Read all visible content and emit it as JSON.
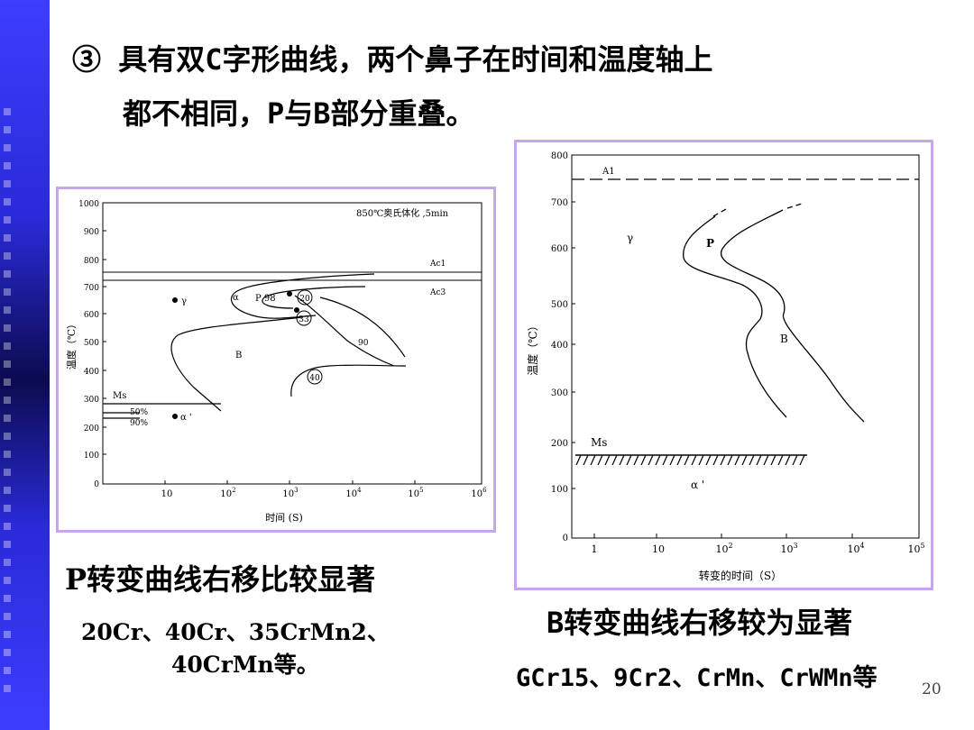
{
  "title": {
    "line1": "③ 具有双C字形曲线，两个鼻子在时间和温度轴上",
    "line2": "都不相同，P与B部分重叠。"
  },
  "left_figure": {
    "annotation": "850℃奥氏体化 ,5min",
    "ylabel": "温度（℃）",
    "xlabel": "时间 (S)",
    "yticks": [
      "1000",
      "900",
      "800",
      "700",
      "600",
      "500",
      "400",
      "300",
      "200",
      "100",
      "0"
    ],
    "xtick_base": [
      "10",
      "10",
      "10",
      "10",
      "10",
      "10"
    ],
    "xtick_exp": [
      "",
      "2",
      "3",
      "4",
      "5",
      "6"
    ],
    "labels": {
      "ac1": "Ac1",
      "ac3": "Ac3",
      "gamma": "γ",
      "alpha": "α",
      "p98": "P  98",
      "b": "B",
      "ms": "Ms",
      "pct50": "50%",
      "pct90": "90%",
      "alpha_prime": "α '",
      "n20": "20",
      "n33": "33",
      "n90": "90",
      "n40": "40"
    }
  },
  "right_figure": {
    "ylabel": "温度（℃）",
    "xlabel": "转变的时间（S）",
    "yticks": [
      "800",
      "700",
      "600",
      "500",
      "400",
      "300",
      "200",
      "100",
      "0"
    ],
    "xtick_base": [
      "1",
      "10",
      "10",
      "10",
      "10",
      "10"
    ],
    "xtick_exp": [
      "",
      "",
      "2",
      "3",
      "4",
      "5"
    ],
    "labels": {
      "a1": "A1",
      "gamma": "γ",
      "p": "P",
      "b": "B",
      "ms": "Ms",
      "alpha_prime": "α '"
    }
  },
  "captions": {
    "left": "P转变曲线右移比较显著",
    "left_steels_1": "20Cr、40Cr、35CrMn2、",
    "left_steels_2": "40CrMn等。",
    "right": "B转变曲线右移较为显著",
    "right_steels": "GCr15、9Cr2、CrMn、CrWMn等"
  },
  "page_number": "20"
}
